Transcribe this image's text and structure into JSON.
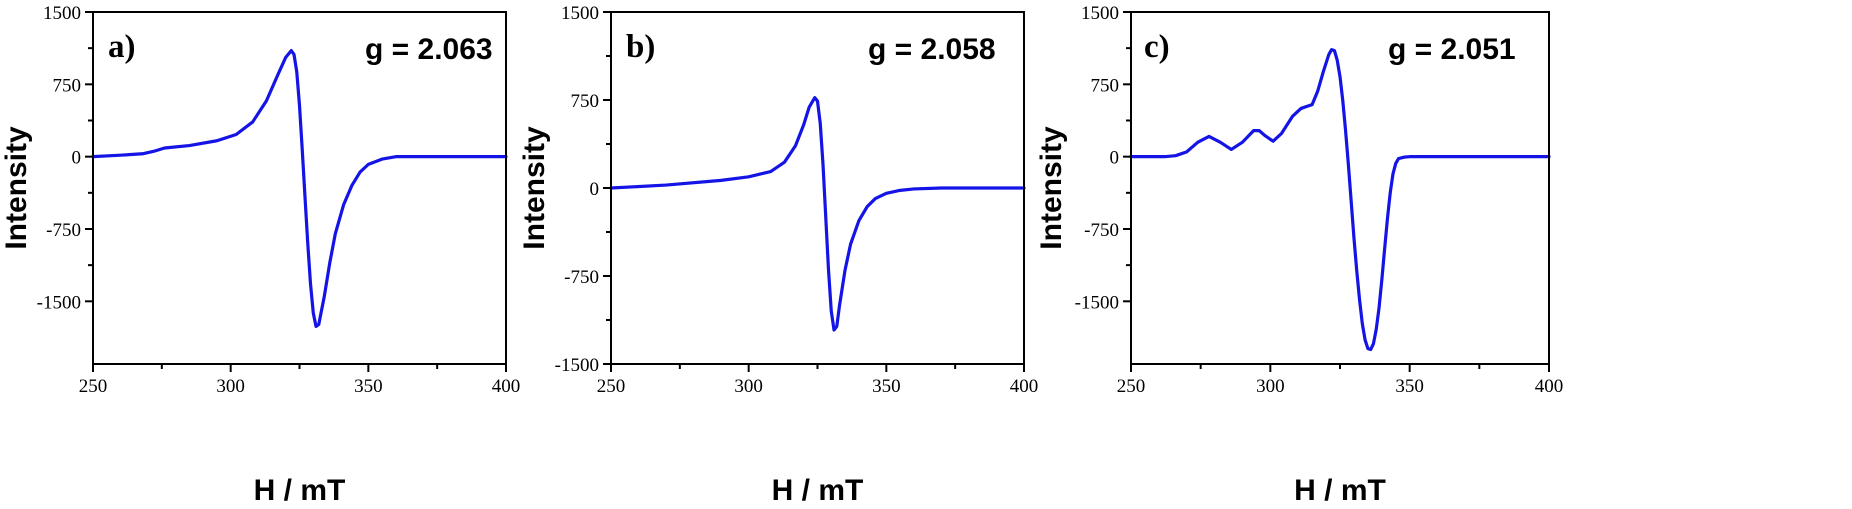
{
  "chart_data": [
    {
      "type": "line",
      "panel_label": "a)",
      "annotation": "g = 2.063",
      "xlabel": "H / mT",
      "ylabel": "Intensity",
      "xlim": [
        250,
        400
      ],
      "ylim": [
        -2150,
        1500
      ],
      "xticks": [
        250,
        300,
        350,
        400
      ],
      "yticks": [
        1500,
        750,
        0,
        -750,
        -1500
      ],
      "series": [
        {
          "color": "#1414e6",
          "x": [
            250,
            260,
            268,
            272,
            276,
            285,
            295,
            302,
            308,
            313,
            317,
            320,
            322,
            323,
            324,
            325,
            326,
            327,
            328,
            329,
            330,
            331,
            332,
            334,
            336,
            338,
            341,
            344,
            347,
            350,
            355,
            360,
            370,
            380,
            390,
            400
          ],
          "y": [
            0,
            15,
            30,
            55,
            90,
            115,
            165,
            230,
            360,
            580,
            840,
            1030,
            1100,
            1060,
            880,
            530,
            70,
            -420,
            -900,
            -1320,
            -1620,
            -1760,
            -1740,
            -1450,
            -1100,
            -800,
            -500,
            -300,
            -160,
            -80,
            -25,
            0,
            0,
            0,
            0,
            0
          ]
        }
      ]
    },
    {
      "type": "line",
      "panel_label": "b)",
      "annotation": "g = 2.058",
      "xlabel": "H / mT",
      "ylabel": "Intensity",
      "xlim": [
        250,
        400
      ],
      "ylim": [
        -1500,
        1500
      ],
      "xticks": [
        250,
        300,
        350,
        400
      ],
      "yticks": [
        1500,
        750,
        0,
        -750,
        -1500
      ],
      "series": [
        {
          "color": "#1414e6",
          "x": [
            250,
            270,
            290,
            300,
            308,
            313,
            317,
            320,
            322,
            324,
            325,
            326,
            327,
            328,
            329,
            330,
            331,
            332,
            333,
            335,
            337,
            340,
            343,
            346,
            350,
            355,
            360,
            370,
            380,
            390,
            400
          ],
          "y": [
            0,
            25,
            65,
            95,
            140,
            220,
            360,
            540,
            690,
            770,
            740,
            550,
            200,
            -250,
            -700,
            -1050,
            -1210,
            -1180,
            -1000,
            -700,
            -480,
            -280,
            -160,
            -90,
            -45,
            -20,
            -8,
            0,
            0,
            0,
            0
          ]
        }
      ]
    },
    {
      "type": "line",
      "panel_label": "c)",
      "annotation": "g = 2.051",
      "xlabel": "H / mT",
      "ylabel": "Intensity",
      "xlim": [
        250,
        400
      ],
      "ylim": [
        -2150,
        1500
      ],
      "xticks": [
        250,
        300,
        350,
        400
      ],
      "yticks": [
        1500,
        750,
        0,
        -750,
        -1500
      ],
      "series": [
        {
          "color": "#1414e6",
          "x": [
            250,
            262,
            266,
            270,
            274,
            278,
            282,
            286,
            290,
            294,
            296,
            298,
            301,
            304,
            308,
            311,
            313,
            315,
            317,
            319,
            321,
            322,
            323,
            324,
            325,
            326,
            327,
            328,
            329,
            330,
            331,
            332,
            333,
            334,
            335,
            336,
            337,
            338,
            339,
            340,
            341,
            342,
            343,
            344,
            345,
            346,
            348,
            350,
            352,
            360,
            370,
            380,
            390,
            400
          ],
          "y": [
            0,
            0,
            10,
            50,
            150,
            210,
            150,
            75,
            150,
            270,
            270,
            220,
            160,
            240,
            420,
            500,
            520,
            540,
            680,
            880,
            1060,
            1110,
            1100,
            1000,
            830,
            580,
            270,
            -80,
            -460,
            -840,
            -1180,
            -1480,
            -1730,
            -1900,
            -1990,
            -2000,
            -1940,
            -1790,
            -1570,
            -1280,
            -960,
            -650,
            -380,
            -180,
            -70,
            -20,
            -5,
            0,
            0,
            0,
            0,
            0,
            0,
            0
          ]
        }
      ]
    }
  ]
}
